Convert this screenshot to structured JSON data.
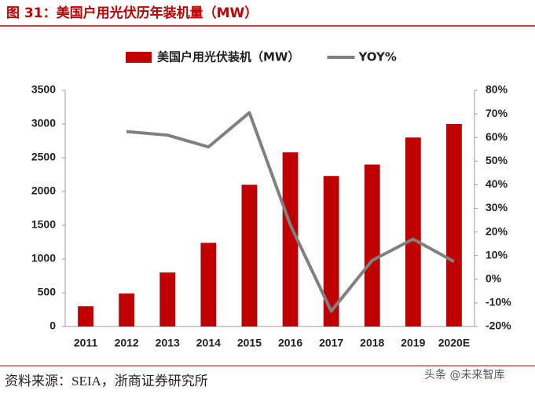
{
  "chart_data": {
    "type": "bar_line",
    "title": "图 31：美国户用光伏历年装机量（MW）",
    "source": "资料来源：SEIA，浙商证券研究所",
    "watermark": "头条 @未来智库",
    "categories": [
      "2011",
      "2012",
      "2013",
      "2014",
      "2015",
      "2016",
      "2017",
      "2018",
      "2019",
      "2020E"
    ],
    "series": [
      {
        "name": "美国户用光伏装机（MW）",
        "type": "bar",
        "color": "#c00000",
        "values": [
          300,
          490,
          800,
          1240,
          2100,
          2580,
          2230,
          2400,
          2800,
          3000
        ]
      },
      {
        "name": "YOY%",
        "type": "line",
        "axis": "y2",
        "color": "#808080",
        "values": [
          null,
          62.5,
          61,
          56,
          70.5,
          23,
          -13.5,
          8,
          17,
          7.5
        ]
      }
    ],
    "ylim": [
      0,
      3500
    ],
    "yticks": [
      0,
      500,
      1000,
      1500,
      2000,
      2500,
      3000,
      3500
    ],
    "y2lim": [
      -20,
      80
    ],
    "y2ticks": [
      {
        "value": -20,
        "label": "-20%"
      },
      {
        "value": -10,
        "label": "-10%"
      },
      {
        "value": 0,
        "label": "0%"
      },
      {
        "value": 10,
        "label": "10%"
      },
      {
        "value": 20,
        "label": "20%"
      },
      {
        "value": 30,
        "label": "30%"
      },
      {
        "value": 40,
        "label": "40%"
      },
      {
        "value": 50,
        "label": "50%"
      },
      {
        "value": 60,
        "label": "60%"
      },
      {
        "value": 70,
        "label": "70%"
      },
      {
        "value": 80,
        "label": "80%"
      }
    ],
    "grid": false,
    "legend": "top"
  }
}
